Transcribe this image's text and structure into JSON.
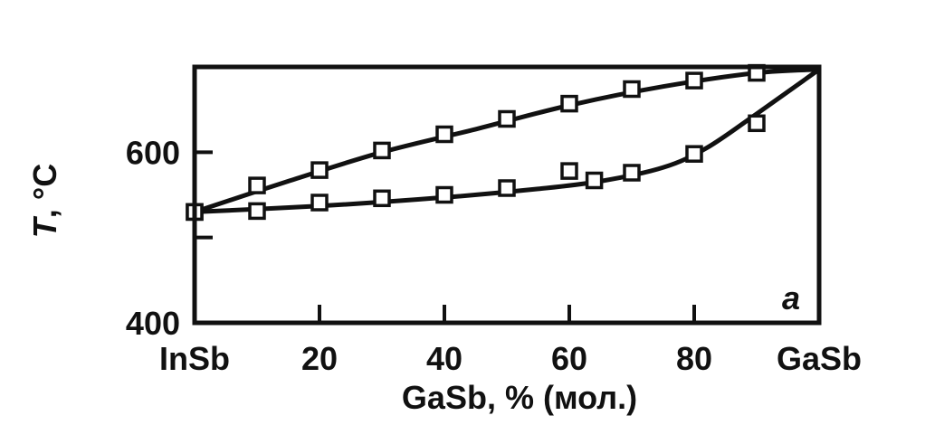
{
  "chart_data": {
    "type": "line",
    "title": "",
    "xlabel": "GaSb, % (мол.)",
    "ylabel_italic": "T",
    "ylabel_rest": ", °C",
    "panel_label": "a",
    "xlim": [
      0,
      100
    ],
    "ylim": [
      400,
      700
    ],
    "x_tick_labels": [
      {
        "x": 0,
        "label": "InSb"
      },
      {
        "x": 20,
        "label": "20"
      },
      {
        "x": 40,
        "label": "40"
      },
      {
        "x": 60,
        "label": "60"
      },
      {
        "x": 80,
        "label": "80"
      },
      {
        "x": 100,
        "label": "GaSb"
      }
    ],
    "y_tick_labels": [
      {
        "y": 400,
        "label": "400"
      },
      {
        "y": 600,
        "label": "600"
      }
    ],
    "y_minor_ticks": [
      500,
      700
    ],
    "series": [
      {
        "curve": [
          [
            0,
            530
          ],
          [
            15,
            566
          ],
          [
            30,
            600
          ],
          [
            45,
            627
          ],
          [
            60,
            655
          ],
          [
            75,
            677
          ],
          [
            90,
            693
          ],
          [
            100,
            697
          ]
        ],
        "points": [
          [
            0,
            530
          ],
          [
            10,
            561
          ],
          [
            20,
            579
          ],
          [
            30,
            602
          ],
          [
            40,
            621
          ],
          [
            50,
            639
          ],
          [
            60,
            657
          ],
          [
            70,
            674
          ],
          [
            80,
            684
          ],
          [
            90,
            693
          ]
        ]
      },
      {
        "curve": [
          [
            0,
            530
          ],
          [
            20,
            537
          ],
          [
            40,
            547
          ],
          [
            55,
            557
          ],
          [
            65,
            566
          ],
          [
            75,
            582
          ],
          [
            82,
            605
          ],
          [
            90,
            645
          ],
          [
            100,
            697
          ]
        ],
        "points": [
          [
            0,
            530
          ],
          [
            10,
            531
          ],
          [
            20,
            541
          ],
          [
            30,
            546
          ],
          [
            40,
            550
          ],
          [
            50,
            558
          ],
          [
            60,
            578
          ],
          [
            64,
            567
          ],
          [
            70,
            576
          ],
          [
            80,
            598
          ],
          [
            90,
            634
          ]
        ]
      }
    ]
  }
}
